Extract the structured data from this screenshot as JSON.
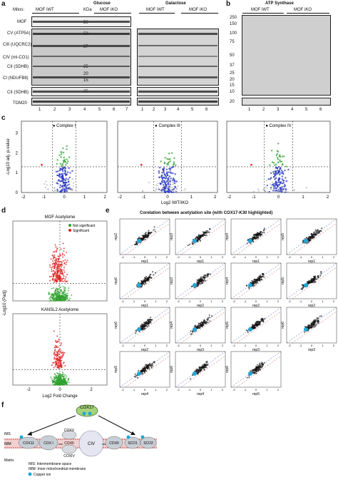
{
  "panels": {
    "a": "a",
    "b": "b",
    "c": "c",
    "d": "d",
    "e": "e",
    "f": "f"
  },
  "panel_a": {
    "mitos_label": "Mitos:",
    "conditions": {
      "glucose": "Glucose",
      "galactose": "Galactose"
    },
    "groups": [
      "MOF iWT",
      "MOF iKO",
      "MOF iWT",
      "MOF iKO"
    ],
    "kda_label": "KDa",
    "rows": [
      "MOF",
      "CV (ATP5A)",
      "CIII (UQCRC2)",
      "CIV (mt-CO1)",
      "CII (SDHB)",
      "CI (NDUFB8)",
      "CII (SDHB)",
      "TOM20"
    ],
    "markers": [
      "50",
      "50",
      "37",
      "25",
      "20",
      "15",
      "25"
    ],
    "lanes_left": [
      "1",
      "2",
      "3",
      "4",
      "5",
      "6",
      "7"
    ],
    "lanes_right": [
      "1",
      "2",
      "3",
      "4",
      "5",
      "6"
    ]
  },
  "panel_b": {
    "title": "ATP Synthase",
    "groups": [
      "MOF iWT",
      "MOF iKO"
    ],
    "markers": [
      "250",
      "150",
      "100",
      "75",
      "50",
      "37",
      "25",
      "20",
      "15",
      "10",
      "20"
    ],
    "lanes": [
      "1",
      "2",
      "3",
      "4",
      "5",
      "6"
    ]
  },
  "panel_c": {
    "ylabel": "-Log10 adj. p-value",
    "xlabel": "Log2 IWT/IKO",
    "plots": [
      {
        "title": "Complex I"
      },
      {
        "title": "Complex III"
      },
      {
        "title": "Complex IV"
      }
    ],
    "yticks": [
      "0",
      "1",
      "2",
      "3"
    ],
    "xticks": [
      "-2",
      "-1",
      "0",
      "1",
      "2"
    ]
  },
  "panel_d": {
    "title1": "MOF Acetylome",
    "title2": "KANSL2 Acetylome",
    "legend": [
      "Not significant",
      "Significant"
    ],
    "ylabel": "-Log10 (Padj)",
    "xlabel": "Log2 Fold Change",
    "xticks": [
      "-2",
      "0",
      "2"
    ]
  },
  "panel_e": {
    "title": "Corelation between acetylation site (with COX17-K30 highlighted)",
    "grid": [
      [
        [
          "rep2",
          "rep1"
        ],
        [
          "rep3",
          "rep1"
        ],
        [
          "rep4",
          "rep1"
        ],
        [
          "rep5",
          "rep1"
        ]
      ],
      [
        [
          "rep6",
          "rep1"
        ],
        [
          "rep3",
          "rep2"
        ],
        [
          "rep4",
          "rep2"
        ],
        [
          "rep5",
          "rep2"
        ]
      ],
      [
        [
          "rep6",
          "rep2"
        ],
        [
          "rep4",
          "rep3"
        ],
        [
          "rep5",
          "rep3"
        ],
        [
          "rep6",
          "rep3"
        ]
      ],
      [
        [
          "rep5",
          "rep4"
        ],
        [
          "rep6",
          "rep4"
        ],
        [
          "rep6",
          "rep5"
        ]
      ]
    ],
    "ticks": [
      "-2",
      "-1",
      "0",
      "1",
      "2"
    ]
  },
  "panel_f": {
    "cox17": "COX17",
    "complexes": [
      "COX I",
      "COXII",
      "COXV",
      "COXIV",
      "CIV",
      "COXII",
      "SCO1",
      "SCO2",
      "COX11"
    ],
    "ims": "IMS",
    "imm": "IMM",
    "matrix": "Matrix",
    "legend": [
      "IMS: Intermembrane space",
      "IMM: Inner mitochondrial membrane",
      "Copper ion"
    ]
  },
  "colors": {
    "significant": "#e02020",
    "not_significant": "#2ca02c",
    "blue": "#2030c0",
    "cyan": "#22a7d6",
    "membrane": "#e8a0a0"
  }
}
